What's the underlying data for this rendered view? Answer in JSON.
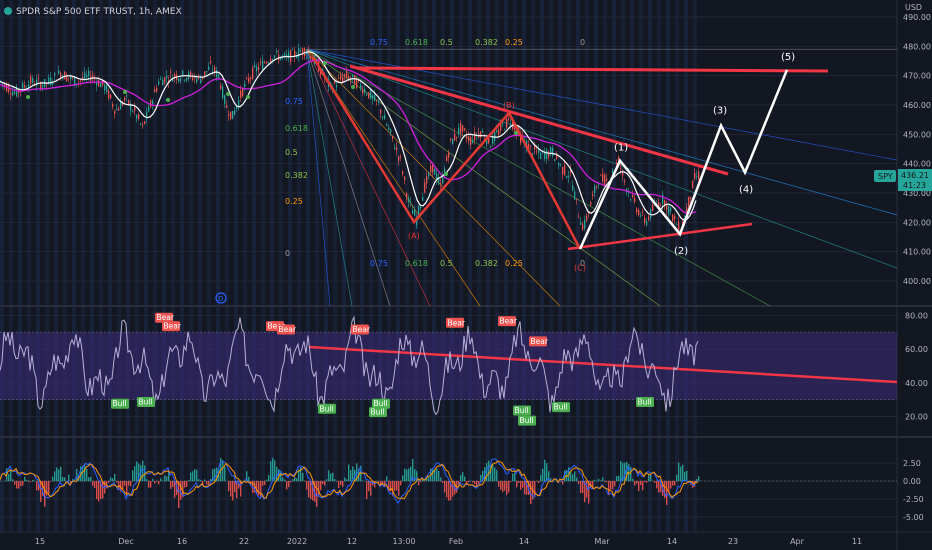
{
  "chart_data": {
    "type": "line",
    "title": "SPDR S&P 500 ETF TRUST, 1h, AMEX",
    "currency": "USD",
    "price_axis": {
      "ylim": [
        393,
        492
      ],
      "ticks": [
        "490.00",
        "480.00",
        "470.00",
        "460.00",
        "450.00",
        "440.00",
        "430.00",
        "420.00",
        "410.00",
        "400.00"
      ]
    },
    "rsi_axis": {
      "ylim": [
        12,
        82
      ],
      "ticks": [
        "80.00",
        "60.00",
        "40.00",
        "20.00"
      ]
    },
    "macd_axis": {
      "ylim": [
        -6,
        3.5
      ],
      "ticks": [
        "2.50",
        "0.00",
        "-2.50",
        "-5.00"
      ]
    },
    "x_axis": {
      "tick_labels": [
        "15",
        "Dec",
        "16",
        "22",
        "2022",
        "12",
        "13:00",
        "Feb",
        "14",
        "Mar",
        "14",
        "23",
        "Apr",
        "11"
      ]
    },
    "last_price": {
      "symbol": "SPY",
      "value": "436.21",
      "countdown": "41:23",
      "color": "#26a69a"
    },
    "price_series": [
      {
        "t": 0,
        "y": 468
      },
      {
        "t": 15,
        "y": 464
      },
      {
        "t": 30,
        "y": 468
      },
      {
        "t": 45,
        "y": 467
      },
      {
        "t": 60,
        "y": 471
      },
      {
        "t": 75,
        "y": 468
      },
      {
        "t": 90,
        "y": 470
      },
      {
        "t": 105,
        "y": 466
      },
      {
        "t": 115,
        "y": 458
      },
      {
        "t": 125,
        "y": 462
      },
      {
        "t": 135,
        "y": 457
      },
      {
        "t": 142,
        "y": 452
      },
      {
        "t": 150,
        "y": 460
      },
      {
        "t": 158,
        "y": 468
      },
      {
        "t": 170,
        "y": 470
      },
      {
        "t": 185,
        "y": 470
      },
      {
        "t": 200,
        "y": 469
      },
      {
        "t": 210,
        "y": 473
      },
      {
        "t": 218,
        "y": 470
      },
      {
        "t": 225,
        "y": 460
      },
      {
        "t": 232,
        "y": 456
      },
      {
        "t": 242,
        "y": 465
      },
      {
        "t": 252,
        "y": 471
      },
      {
        "t": 262,
        "y": 474
      },
      {
        "t": 272,
        "y": 477
      },
      {
        "t": 285,
        "y": 476
      },
      {
        "t": 298,
        "y": 478
      },
      {
        "t": 307,
        "y": 479
      },
      {
        "t": 318,
        "y": 473
      },
      {
        "t": 330,
        "y": 466
      },
      {
        "t": 345,
        "y": 470
      },
      {
        "t": 355,
        "y": 468
      },
      {
        "t": 365,
        "y": 465
      },
      {
        "t": 378,
        "y": 460
      },
      {
        "t": 390,
        "y": 450
      },
      {
        "t": 400,
        "y": 441
      },
      {
        "t": 408,
        "y": 427
      },
      {
        "t": 416,
        "y": 421
      },
      {
        "t": 424,
        "y": 432
      },
      {
        "t": 432,
        "y": 439
      },
      {
        "t": 440,
        "y": 432
      },
      {
        "t": 450,
        "y": 447
      },
      {
        "t": 460,
        "y": 452
      },
      {
        "t": 470,
        "y": 448
      },
      {
        "t": 480,
        "y": 451
      },
      {
        "t": 490,
        "y": 447
      },
      {
        "t": 500,
        "y": 452
      },
      {
        "t": 510,
        "y": 455
      },
      {
        "t": 520,
        "y": 449
      },
      {
        "t": 530,
        "y": 445
      },
      {
        "t": 540,
        "y": 443
      },
      {
        "t": 552,
        "y": 444
      },
      {
        "t": 562,
        "y": 438
      },
      {
        "t": 570,
        "y": 436
      },
      {
        "t": 578,
        "y": 423
      },
      {
        "t": 583,
        "y": 418
      },
      {
        "t": 590,
        "y": 426
      },
      {
        "t": 598,
        "y": 435
      },
      {
        "t": 608,
        "y": 434
      },
      {
        "t": 618,
        "y": 441
      },
      {
        "t": 626,
        "y": 432
      },
      {
        "t": 636,
        "y": 425
      },
      {
        "t": 645,
        "y": 420
      },
      {
        "t": 655,
        "y": 426
      },
      {
        "t": 663,
        "y": 428
      },
      {
        "t": 672,
        "y": 422
      },
      {
        "t": 680,
        "y": 417
      },
      {
        "t": 688,
        "y": 427
      },
      {
        "t": 694,
        "y": 435
      },
      {
        "t": 698,
        "y": 436
      }
    ],
    "forecast_waves": [
      {
        "label": "(1)",
        "t": 620,
        "y": 441
      },
      {
        "label": "(2)",
        "t": 680,
        "y": 416
      },
      {
        "label": "(3)",
        "t": 721,
        "y": 453
      },
      {
        "label": "(4)",
        "t": 745,
        "y": 437
      },
      {
        "label": "(5)",
        "t": 787,
        "y": 472
      }
    ],
    "abc_labels": [
      {
        "label": "(A)",
        "t": 414,
        "y": 420
      },
      {
        "label": "(B)",
        "t": 509,
        "y": 457
      },
      {
        "label": "(C)",
        "t": 580,
        "y": 411
      }
    ],
    "fib_levels": [
      "0.75",
      "0.618",
      "0.5",
      "0.382",
      "0.25",
      "0"
    ],
    "fib_side_levels": [
      "0.75",
      "0.618",
      "0.5",
      "0.382",
      "0.25",
      "0"
    ],
    "rsi_tags": [
      {
        "text": "Bear",
        "kind": "bear",
        "t": 164,
        "y": 78
      },
      {
        "text": "Bear",
        "kind": "bear",
        "t": 171,
        "y": 73
      },
      {
        "text": "Bull",
        "kind": "bull",
        "t": 120,
        "y": 27
      },
      {
        "text": "Bull",
        "kind": "bull",
        "t": 146,
        "y": 28
      },
      {
        "text": "Bear",
        "kind": "bear",
        "t": 275,
        "y": 73
      },
      {
        "text": "Bear",
        "kind": "bear",
        "t": 286,
        "y": 71
      },
      {
        "text": "Bull",
        "kind": "bull",
        "t": 327,
        "y": 24
      },
      {
        "text": "Bear",
        "kind": "bear",
        "t": 360,
        "y": 71
      },
      {
        "text": "Bull",
        "kind": "bull",
        "t": 381,
        "y": 27
      },
      {
        "text": "Bull",
        "kind": "bull",
        "t": 378,
        "y": 22
      },
      {
        "text": "Bear",
        "kind": "bear",
        "t": 455,
        "y": 75
      },
      {
        "text": "Bear",
        "kind": "bear",
        "t": 507,
        "y": 76
      },
      {
        "text": "Bear",
        "kind": "bear",
        "t": 538,
        "y": 64
      },
      {
        "text": "Bull",
        "kind": "bull",
        "t": 522,
        "y": 23
      },
      {
        "text": "Bull",
        "kind": "bull",
        "t": 527,
        "y": 17
      },
      {
        "text": "Bull",
        "kind": "bull",
        "t": 561,
        "y": 25
      },
      {
        "text": "Bull",
        "kind": "bull",
        "t": 645,
        "y": 28
      }
    ],
    "colors": {
      "background": "#131722",
      "bull_candle": "#26a69a",
      "bear_candle": "#ef5350",
      "ma_fast": "#ffffff",
      "ma_slow": "#d020e0",
      "trendline": "#f23645",
      "forecast": "#ffffff",
      "rsi_line": "#b7b0d8",
      "rsi_band": "#3d2b7a",
      "macd_line": "#2962ff",
      "signal_line": "#ff9800"
    }
  }
}
